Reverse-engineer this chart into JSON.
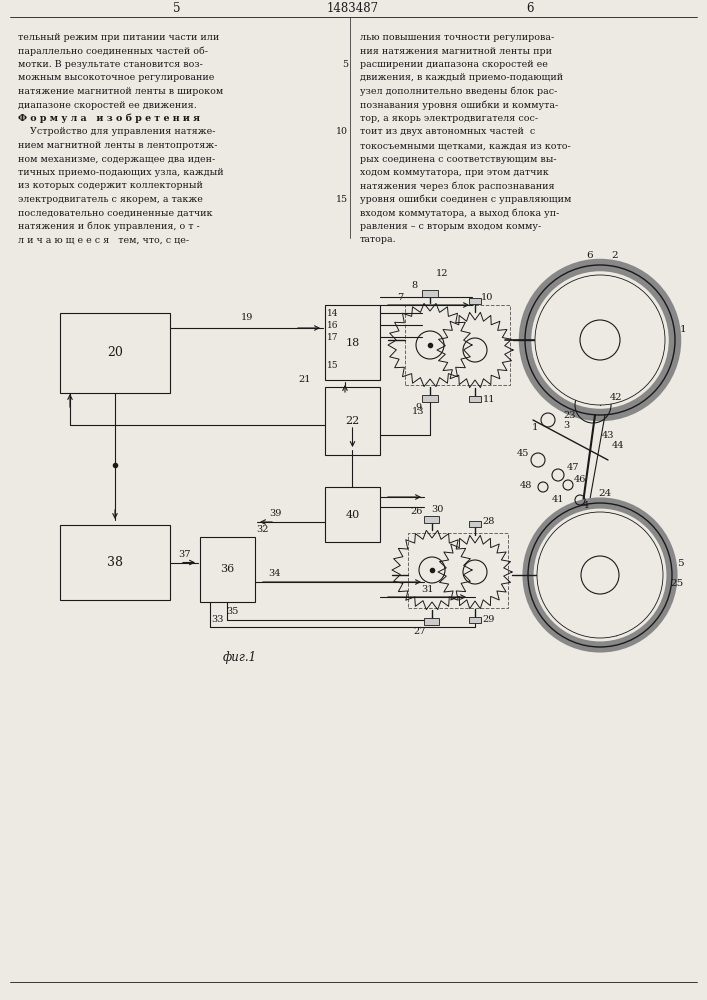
{
  "bg": "#edeae3",
  "lc": "#1a1a1a",
  "tc": "#1a1a1a",
  "page_title": "1483487",
  "page_left": "5",
  "page_right": "6",
  "fig_caption": "фиг.1",
  "left_col": [
    "тельный режим при питании части или",
    "параллельно соединенных частей об-",
    "мотки. В результате становится воз-",
    "можным высокоточное регулирование",
    "натяжение магнитной ленты в широком",
    "диапазоне скоростей ее движения.",
    "Ф о р м у л а   и з о б р е т е н и я",
    "    Устройство для управления натяже-",
    "нием магнитной ленты в лентопротяж-",
    "ном механизме, содержащее два иден-",
    "тичных приемо-подающих узла, каждый",
    "из которых содержит коллекторный",
    "электродвигатель с якорем, а также",
    "последовательно соединенные датчик",
    "натяжения и блок управления, о т -",
    "л и ч а ю щ е е с я   тем, что, с це-"
  ],
  "right_col": [
    "лью повышения точности регулирова-",
    "ния натяжения магнитной ленты при",
    "расширении диапазона скоростей ее",
    "движения, в каждый приемо-подающий",
    "узел дополнительно введены блок рас-",
    "познавания уровня ошибки и коммута-",
    "тор, а якорь электродвигателя сос-",
    "тоит из двух автономных частей  с",
    "токосъемными щетками, каждая из кото-",
    "рых соединена с соответствующим вы-",
    "ходом коммутатора, при этом датчик",
    "натяжения через блок распознавания",
    "уровня ошибки соединен с управляющим",
    "входом коммутатора, а выход блока уп-",
    "равления – с вторым входом комму-",
    "татора."
  ]
}
